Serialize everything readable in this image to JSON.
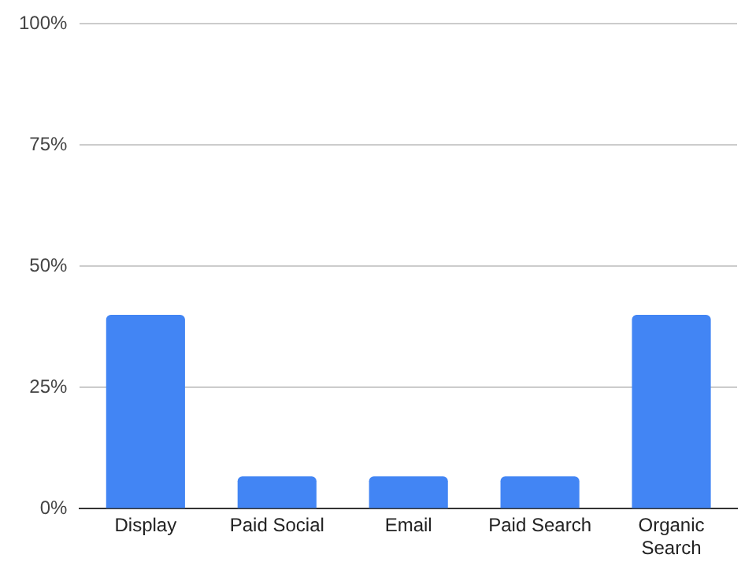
{
  "chart_data": {
    "type": "bar",
    "categories": [
      "Display",
      "Paid Social",
      "Email",
      "Paid Search",
      "Organic Search"
    ],
    "values": [
      40,
      6.7,
      6.7,
      6.7,
      40
    ],
    "color": "#4285f4",
    "ylim": [
      0,
      100
    ],
    "yticks": [
      {
        "value": 0,
        "label": "0%"
      },
      {
        "value": 25,
        "label": "25%"
      },
      {
        "value": 50,
        "label": "50%"
      },
      {
        "value": 75,
        "label": "75%"
      },
      {
        "value": 100,
        "label": "100%"
      }
    ],
    "grid": "y",
    "legend": false
  }
}
